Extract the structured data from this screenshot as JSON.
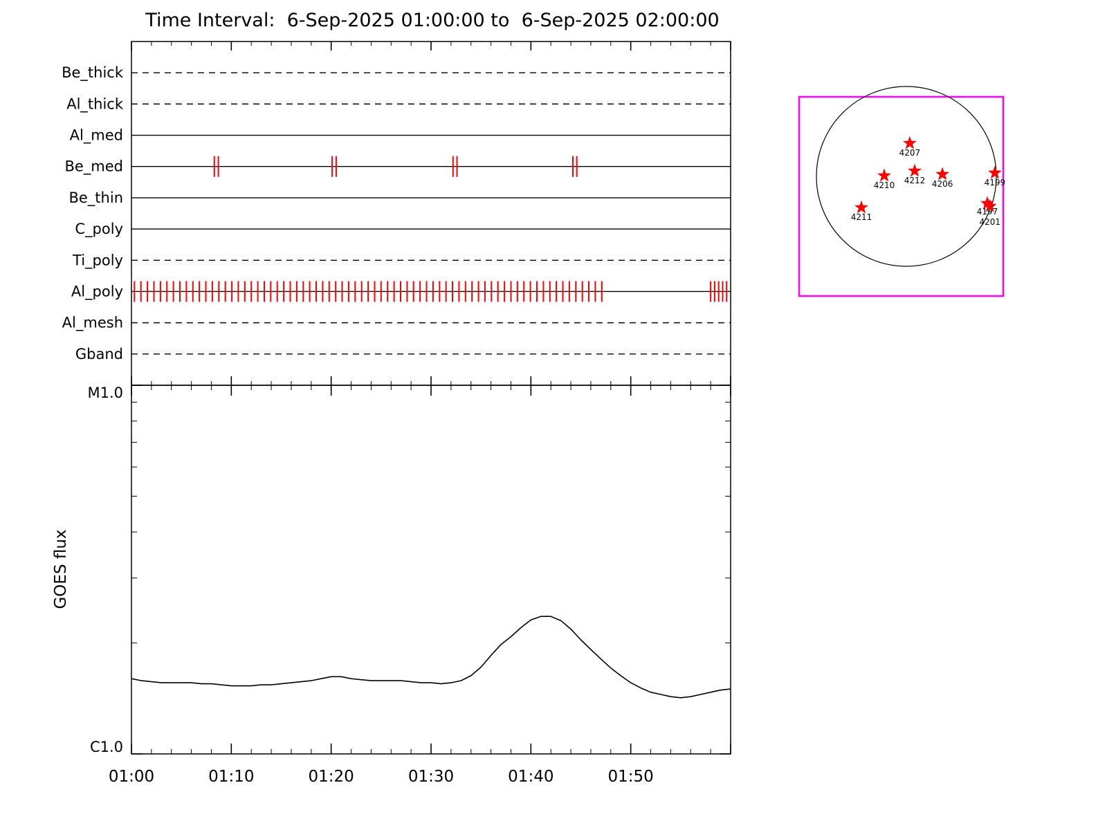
{
  "title": "Time Interval:  6-Sep-2025 01:00:00 to  6-Sep-2025 02:00:00",
  "colors": {
    "exposure_tick": "#ff0000",
    "star": "#ff0000",
    "map_border": "#ff00ff",
    "curve": "#000000",
    "axis": "#000000"
  },
  "chart_data": [
    {
      "type": "timeline",
      "title": "XRT filter exposure timeline",
      "x_unit": "minutes after 01:00",
      "x_range": [
        0,
        60
      ],
      "x_major_tick_minutes": 10,
      "x_minor_tick_minutes": 2,
      "rows": [
        {
          "label": "Be_thick",
          "line_style": "dashed",
          "exposure_ticks": []
        },
        {
          "label": "Al_thick",
          "line_style": "dashed",
          "exposure_ticks": []
        },
        {
          "label": "Al_med",
          "line_style": "solid",
          "exposure_ticks": []
        },
        {
          "label": "Be_med",
          "line_style": "solid",
          "exposure_ticks": [
            8.3,
            8.7,
            20.1,
            20.5,
            32.2,
            32.6,
            44.2,
            44.6
          ]
        },
        {
          "label": "Be_thin",
          "line_style": "solid",
          "exposure_ticks": []
        },
        {
          "label": "C_poly",
          "line_style": "solid",
          "exposure_ticks": []
        },
        {
          "label": "Ti_poly",
          "line_style": "dashed",
          "exposure_ticks": []
        },
        {
          "label": "Al_poly",
          "line_style": "solid",
          "exposure_ticks": [
            0.3,
            0.95,
            1.6,
            2.25,
            2.9,
            3.55,
            4.2,
            4.85,
            5.5,
            6.15,
            6.8,
            7.45,
            8.1,
            8.75,
            9.4,
            10.05,
            10.7,
            11.35,
            12.0,
            12.65,
            13.3,
            13.95,
            14.6,
            15.25,
            15.9,
            16.55,
            17.2,
            17.85,
            18.5,
            19.15,
            19.8,
            20.45,
            21.1,
            21.75,
            22.4,
            23.05,
            23.7,
            24.35,
            25.0,
            25.65,
            26.3,
            26.95,
            27.6,
            28.25,
            28.9,
            29.55,
            30.2,
            30.85,
            31.5,
            32.15,
            32.8,
            33.45,
            34.1,
            34.75,
            35.4,
            36.05,
            36.7,
            37.35,
            38.0,
            38.65,
            39.3,
            39.95,
            40.6,
            41.25,
            41.9,
            42.55,
            43.2,
            43.85,
            44.5,
            45.15,
            45.8,
            46.45,
            47.1,
            58.0,
            58.4,
            58.8,
            59.2,
            59.6
          ]
        },
        {
          "label": "Al_mesh",
          "line_style": "dashed",
          "exposure_ticks": []
        },
        {
          "label": "Gband",
          "line_style": "dashed",
          "exposure_ticks": []
        }
      ]
    },
    {
      "type": "line",
      "ylabel": "GOES flux",
      "y_scale": "log",
      "y_top_label": "M1.0",
      "y_bottom_label": "C1.0",
      "ylim_wm2": [
        1e-06,
        1e-05
      ],
      "x_tick_labels": [
        "01:00",
        "01:10",
        "01:20",
        "01:30",
        "01:40",
        "01:50"
      ],
      "x_major_tick_minutes": 10,
      "x_minor_tick_minutes": 2,
      "series": [
        {
          "name": "GOES flux",
          "x_minutes": [
            0,
            1,
            2,
            3,
            4,
            5,
            6,
            7,
            8,
            9,
            10,
            11,
            12,
            13,
            14,
            15,
            16,
            17,
            18,
            19,
            20,
            21,
            22,
            23,
            24,
            25,
            26,
            27,
            28,
            29,
            30,
            31,
            32,
            33,
            34,
            35,
            36,
            37,
            38,
            39,
            40,
            41,
            42,
            43,
            44,
            45,
            46,
            47,
            48,
            49,
            50,
            51,
            52,
            53,
            54,
            55,
            56,
            57,
            58,
            59,
            60
          ],
          "flux_c_units": [
            1.6,
            1.58,
            1.57,
            1.56,
            1.56,
            1.56,
            1.56,
            1.55,
            1.55,
            1.54,
            1.53,
            1.53,
            1.53,
            1.54,
            1.54,
            1.55,
            1.56,
            1.57,
            1.58,
            1.6,
            1.62,
            1.62,
            1.6,
            1.59,
            1.58,
            1.58,
            1.58,
            1.58,
            1.57,
            1.56,
            1.56,
            1.55,
            1.56,
            1.58,
            1.63,
            1.72,
            1.85,
            1.98,
            2.08,
            2.2,
            2.31,
            2.36,
            2.36,
            2.3,
            2.18,
            2.04,
            1.92,
            1.81,
            1.71,
            1.63,
            1.56,
            1.51,
            1.47,
            1.45,
            1.43,
            1.42,
            1.43,
            1.45,
            1.47,
            1.49,
            1.5
          ]
        }
      ]
    },
    {
      "type": "scatter",
      "title": "Solar disk with NOAA active regions",
      "regions": [
        {
          "noaa": "4207",
          "fx": 0.542,
          "fy": 0.233,
          "ldy": 18
        },
        {
          "noaa": "4210",
          "fx": 0.417,
          "fy": 0.396,
          "ldy": 18
        },
        {
          "noaa": "4212",
          "fx": 0.566,
          "fy": 0.372,
          "ldy": 18
        },
        {
          "noaa": "4206",
          "fx": 0.702,
          "fy": 0.389,
          "ldy": 18
        },
        {
          "noaa": "4199",
          "fx": 0.959,
          "fy": 0.382,
          "ldy": 18
        },
        {
          "noaa": "4211",
          "fx": 0.305,
          "fy": 0.556,
          "ldy": 18
        },
        {
          "noaa": "4197",
          "fx": 0.922,
          "fy": 0.535,
          "ldy": 16
        },
        {
          "noaa": "4201",
          "fx": 0.935,
          "fy": 0.549,
          "ldy": 27
        }
      ]
    }
  ]
}
